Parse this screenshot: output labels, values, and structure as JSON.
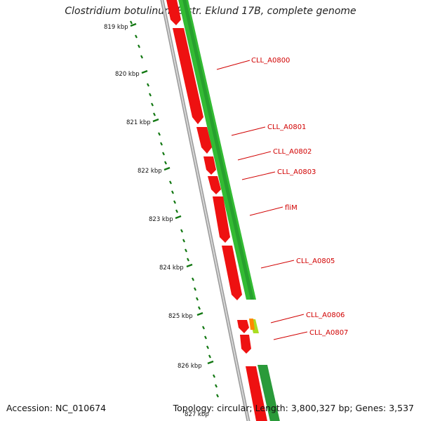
{
  "title": "Clostridium botulinum B str. Eklund 17B, complete genome",
  "scale_labels": [
    "819 kbp",
    "820 kbp",
    "821 kbp",
    "822 kbp",
    "823 kbp",
    "824 kbp",
    "825 kbp",
    "826 kbp",
    "827 kbp"
  ],
  "genes": [
    {
      "label": "CLL_A0800"
    },
    {
      "label": "CLL_A0801"
    },
    {
      "label": "CLL_A0802"
    },
    {
      "label": "CLL_A0803"
    },
    {
      "label": "fliM"
    },
    {
      "label": "CLL_A0805"
    },
    {
      "label": "CLL_A0806"
    },
    {
      "label": "CLL_A0807"
    }
  ],
  "footer": {
    "accession": "Accession: NC_010674",
    "stats": "Topology: circular; Length: 3,800,327 bp; Genes: 3,537"
  },
  "colors": {
    "cds": "#ee1111",
    "similarity": "#33bb33",
    "label": "#d10000",
    "tick": "#117711"
  }
}
